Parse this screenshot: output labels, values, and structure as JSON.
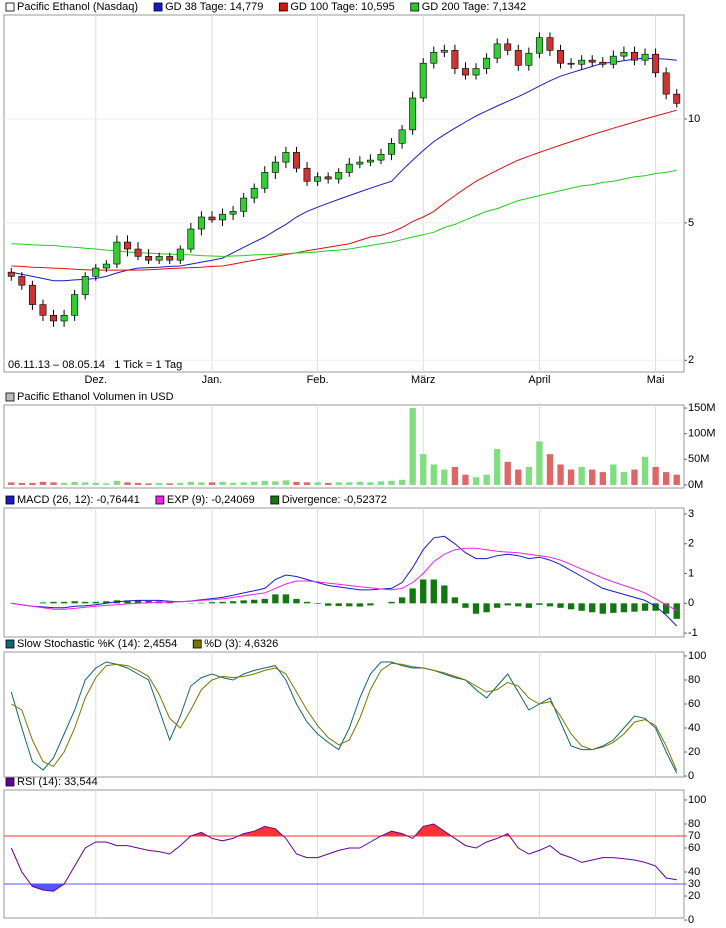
{
  "chart_data": [
    {
      "type": "candlestick",
      "title": "Pacific Ethanol (Nasdaq)",
      "color": "#ffffff",
      "subtitle": "06.11.13 – 08.05.14   1 Tick = 1 Tag",
      "categories": [
        null,
        null,
        null,
        null,
        null,
        null,
        null,
        null,
        "Dez.",
        null,
        null,
        null,
        null,
        null,
        null,
        null,
        null,
        null,
        null,
        "Jan.",
        null,
        null,
        null,
        null,
        null,
        null,
        null,
        null,
        null,
        "Feb.",
        null,
        null,
        null,
        null,
        null,
        null,
        null,
        null,
        null,
        "März",
        null,
        null,
        null,
        null,
        null,
        null,
        null,
        null,
        null,
        null,
        "April",
        null,
        null,
        null,
        null,
        null,
        null,
        null,
        null,
        null,
        null,
        "Mai",
        null,
        null
      ],
      "open": [
        3.6,
        3.5,
        3.3,
        2.9,
        2.7,
        2.6,
        2.7,
        3.1,
        3.5,
        3.7,
        3.8,
        4.4,
        4.2,
        4.0,
        3.9,
        4.0,
        3.9,
        4.2,
        4.8,
        5.2,
        5.1,
        5.3,
        5.4,
        5.9,
        6.3,
        7.0,
        7.5,
        8.0,
        7.2,
        6.6,
        6.8,
        6.7,
        7.0,
        7.4,
        7.5,
        7.6,
        7.9,
        8.5,
        9.3,
        11.5,
        14.5,
        15.6,
        15.8,
        14.0,
        13.4,
        14.0,
        15.0,
        16.5,
        15.8,
        14.3,
        15.5,
        17.2,
        15.8,
        14.5,
        14.4,
        14.8,
        14.6,
        14.4,
        15.2,
        15.6,
        14.8,
        15.4,
        13.6,
        11.8
      ],
      "high": [
        3.7,
        3.6,
        3.4,
        3.0,
        2.8,
        2.8,
        3.2,
        3.6,
        3.8,
        3.9,
        4.6,
        4.6,
        4.4,
        4.2,
        4.1,
        4.1,
        4.3,
        5.0,
        5.4,
        5.4,
        5.5,
        5.6,
        6.1,
        6.5,
        7.3,
        7.8,
        8.3,
        8.3,
        7.5,
        7.0,
        7.0,
        7.2,
        7.7,
        7.8,
        7.9,
        8.2,
        8.8,
        9.6,
        12.0,
        15.0,
        16.2,
        16.4,
        16.4,
        14.6,
        14.5,
        15.5,
        17.1,
        17.1,
        16.4,
        16.1,
        17.8,
        17.8,
        16.4,
        15.0,
        15.3,
        15.3,
        15.1,
        15.8,
        16.2,
        16.2,
        16.0,
        16.0,
        14.1,
        12.2
      ],
      "low": [
        3.4,
        3.2,
        2.8,
        2.6,
        2.5,
        2.5,
        2.6,
        3.0,
        3.4,
        3.6,
        3.7,
        4.0,
        3.9,
        3.8,
        3.8,
        3.8,
        3.8,
        4.1,
        4.6,
        5.0,
        4.9,
        5.1,
        5.2,
        5.7,
        6.1,
        6.7,
        7.2,
        7.0,
        6.4,
        6.4,
        6.5,
        6.5,
        6.8,
        7.2,
        7.3,
        7.4,
        7.6,
        8.2,
        9.0,
        11.2,
        14.0,
        15.1,
        13.5,
        13.0,
        13.0,
        13.5,
        14.5,
        15.3,
        13.8,
        13.8,
        15.0,
        15.2,
        14.0,
        14.0,
        13.9,
        14.2,
        14.1,
        14.0,
        14.8,
        14.3,
        14.3,
        13.2,
        11.4,
        10.8
      ],
      "close": [
        3.5,
        3.3,
        2.9,
        2.7,
        2.6,
        2.7,
        3.1,
        3.5,
        3.7,
        3.8,
        4.4,
        4.2,
        4.0,
        3.9,
        4.0,
        3.9,
        4.2,
        4.8,
        5.2,
        5.1,
        5.3,
        5.4,
        5.9,
        6.3,
        7.0,
        7.5,
        8.0,
        7.2,
        6.6,
        6.8,
        6.7,
        7.0,
        7.4,
        7.5,
        7.6,
        7.9,
        8.5,
        9.3,
        11.5,
        14.5,
        15.6,
        15.8,
        14.0,
        13.4,
        14.0,
        15.0,
        16.5,
        15.8,
        14.3,
        15.5,
        17.2,
        15.8,
        14.5,
        14.4,
        14.8,
        14.6,
        14.4,
        15.2,
        15.6,
        14.8,
        15.4,
        13.6,
        11.8,
        11.1
      ],
      "up_color": "#33cc33",
      "down_color": "#cc3333",
      "series": [
        {
          "name": "GD 38 Tage: 14,779",
          "color": "#1a1acc",
          "values": [
            3.6,
            3.55,
            3.5,
            3.45,
            3.4,
            3.4,
            3.42,
            3.43,
            3.45,
            3.5,
            3.58,
            3.65,
            3.7,
            3.71,
            3.72,
            3.74,
            3.75,
            3.8,
            3.85,
            3.9,
            3.95,
            4.1,
            4.25,
            4.4,
            4.55,
            4.75,
            4.95,
            5.2,
            5.4,
            5.55,
            5.7,
            5.85,
            6.0,
            6.15,
            6.3,
            6.45,
            6.6,
            7.1,
            7.6,
            8.1,
            8.6,
            9.0,
            9.4,
            9.8,
            10.2,
            10.55,
            10.9,
            11.25,
            11.6,
            12.0,
            12.45,
            12.9,
            13.3,
            13.6,
            13.9,
            14.2,
            14.5,
            14.6,
            14.75,
            14.9,
            15.0,
            14.95,
            14.9,
            14.8
          ]
        },
        {
          "name": "GD 100 Tage: 10,595",
          "color": "#dd1111",
          "values": [
            3.75,
            3.74,
            3.72,
            3.71,
            3.7,
            3.69,
            3.67,
            3.66,
            3.65,
            3.65,
            3.65,
            3.65,
            3.65,
            3.66,
            3.67,
            3.69,
            3.7,
            3.71,
            3.72,
            3.74,
            3.75,
            3.8,
            3.85,
            3.9,
            3.95,
            4.0,
            4.05,
            4.1,
            4.15,
            4.2,
            4.25,
            4.3,
            4.35,
            4.45,
            4.55,
            4.6,
            4.7,
            4.85,
            5.05,
            5.2,
            5.4,
            5.7,
            6.0,
            6.3,
            6.6,
            6.85,
            7.1,
            7.35,
            7.6,
            7.8,
            8.0,
            8.2,
            8.4,
            8.6,
            8.8,
            9.0,
            9.2,
            9.4,
            9.6,
            9.8,
            10.0,
            10.2,
            10.4,
            10.6
          ]
        },
        {
          "name": "GD 200 Tage: 7,1342",
          "color": "#22cc22",
          "values": [
            4.35,
            4.34,
            4.32,
            4.31,
            4.3,
            4.27,
            4.25,
            4.22,
            4.2,
            4.17,
            4.15,
            4.12,
            4.1,
            4.09,
            4.07,
            4.06,
            4.05,
            4.04,
            4.02,
            4.01,
            4.0,
            4.01,
            4.02,
            4.04,
            4.05,
            4.06,
            4.07,
            4.09,
            4.1,
            4.12,
            4.15,
            4.17,
            4.2,
            4.25,
            4.3,
            4.35,
            4.4,
            4.47,
            4.55,
            4.62,
            4.7,
            4.85,
            4.95,
            5.1,
            5.25,
            5.4,
            5.5,
            5.65,
            5.8,
            5.9,
            6.0,
            6.1,
            6.2,
            6.3,
            6.4,
            6.45,
            6.55,
            6.6,
            6.7,
            6.8,
            6.85,
            6.95,
            7.0,
            7.1
          ]
        }
      ],
      "ylim": [
        1.85,
        20
      ],
      "yticks": [
        2,
        5,
        10
      ],
      "log": true
    },
    {
      "type": "bar",
      "title": "Pacific Ethanol Volumen in USD",
      "color": "#bbbbbb",
      "up_color": "#80dd80",
      "down_color": "#dd6666",
      "values": [
        5000000,
        4000000,
        4000000,
        6000000,
        5000000,
        4000000,
        6000000,
        5000000,
        4000000,
        3000000,
        8000000,
        5000000,
        4000000,
        3000000,
        4000000,
        3000000,
        4000000,
        6000000,
        5000000,
        5000000,
        6000000,
        4000000,
        5000000,
        6000000,
        8000000,
        7000000,
        9000000,
        6000000,
        5000000,
        5000000,
        4000000,
        5000000,
        5000000,
        6000000,
        5000000,
        7000000,
        8000000,
        10000000,
        150000000,
        60000000,
        40000000,
        30000000,
        35000000,
        20000000,
        15000000,
        20000000,
        70000000,
        45000000,
        30000000,
        35000000,
        85000000,
        60000000,
        40000000,
        30000000,
        35000000,
        30000000,
        25000000,
        40000000,
        25000000,
        30000000,
        55000000,
        35000000,
        25000000,
        20000000
      ],
      "ylim": [
        -6000000,
        156000000
      ],
      "yticks": [
        {
          "value": 0,
          "label": "0M"
        },
        {
          "value": 50000000,
          "label": "50M"
        },
        {
          "value": 100000000,
          "label": "100M"
        },
        {
          "value": 150000000,
          "label": "150M"
        }
      ]
    },
    {
      "type": "macd",
      "series": [
        {
          "name": "MACD (26, 12): -0,76441",
          "color": "#1a1acc",
          "values": [
            0,
            -0.05,
            -0.1,
            -0.12,
            -0.15,
            -0.15,
            -0.1,
            -0.08,
            -0.05,
            0,
            0.05,
            0.08,
            0.1,
            0.1,
            0.1,
            0.07,
            0.05,
            0.08,
            0.12,
            0.16,
            0.2,
            0.27,
            0.35,
            0.42,
            0.5,
            0.8,
            0.95,
            0.9,
            0.8,
            0.7,
            0.6,
            0.55,
            0.5,
            0.45,
            0.45,
            0.48,
            0.5,
            0.7,
            1.2,
            1.8,
            2.2,
            2.25,
            2.0,
            1.7,
            1.5,
            1.5,
            1.6,
            1.65,
            1.6,
            1.5,
            1.55,
            1.45,
            1.3,
            1.1,
            0.9,
            0.7,
            0.5,
            0.4,
            0.3,
            0.2,
            0.1,
            -0.1,
            -0.4,
            -0.76
          ]
        },
        {
          "name": "EXP (9): -0,24069",
          "color": "#ee22ee",
          "values": [
            0,
            -0.05,
            -0.1,
            -0.15,
            -0.2,
            -0.2,
            -0.17,
            -0.13,
            -0.1,
            -0.07,
            -0.05,
            -0.02,
            0,
            0.02,
            0.03,
            0.04,
            0.05,
            0.07,
            0.1,
            0.12,
            0.15,
            0.2,
            0.25,
            0.3,
            0.35,
            0.5,
            0.65,
            0.75,
            0.75,
            0.72,
            0.68,
            0.64,
            0.6,
            0.56,
            0.52,
            0.48,
            0.45,
            0.5,
            0.7,
            1.0,
            1.4,
            1.65,
            1.8,
            1.85,
            1.85,
            1.8,
            1.75,
            1.72,
            1.7,
            1.65,
            1.6,
            1.55,
            1.45,
            1.3,
            1.15,
            1.0,
            0.85,
            0.72,
            0.6,
            0.48,
            0.35,
            0.15,
            -0.05,
            -0.24
          ]
        },
        {
          "name": "Divergence: -0,52372",
          "color": "#117711",
          "style": "bar",
          "values": [
            0,
            0,
            0,
            0.03,
            0.05,
            0.05,
            0.07,
            0.05,
            0.05,
            0.07,
            0.1,
            0.1,
            0.1,
            0.08,
            0.07,
            0.03,
            0,
            0.01,
            0.02,
            0.04,
            0.05,
            0.07,
            0.1,
            0.12,
            0.15,
            0.3,
            0.3,
            0.15,
            0.05,
            -0.02,
            -0.08,
            -0.09,
            -0.1,
            -0.11,
            -0.07,
            0,
            0.05,
            0.2,
            0.5,
            0.8,
            0.8,
            0.6,
            0.2,
            -0.15,
            -0.35,
            -0.3,
            -0.15,
            -0.07,
            -0.1,
            -0.15,
            -0.05,
            -0.1,
            -0.15,
            -0.2,
            -0.25,
            -0.3,
            -0.35,
            -0.32,
            -0.3,
            -0.28,
            -0.25,
            -0.25,
            -0.35,
            -0.52
          ]
        }
      ],
      "ylim": [
        -1.13,
        3.2
      ],
      "yticks": [
        -1,
        0,
        1,
        2,
        3
      ]
    },
    {
      "type": "line",
      "series": [
        {
          "name": "Slow Stochastic %K (14): 2,4554",
          "color": "#116677",
          "values": [
            70,
            40,
            12,
            5,
            15,
            35,
            55,
            80,
            90,
            95,
            93,
            90,
            85,
            80,
            55,
            30,
            50,
            75,
            82,
            85,
            82,
            80,
            85,
            88,
            90,
            92,
            80,
            60,
            45,
            35,
            28,
            22,
            40,
            65,
            85,
            95,
            95,
            92,
            90,
            90,
            88,
            85,
            82,
            80,
            72,
            65,
            75,
            85,
            70,
            55,
            60,
            65,
            45,
            25,
            22,
            22,
            25,
            30,
            40,
            50,
            48,
            40,
            20,
            2.4554
          ]
        },
        {
          "name": "%D (3): 4,6326",
          "color": "#777700",
          "values": [
            60,
            55,
            30,
            12,
            8,
            20,
            40,
            65,
            82,
            92,
            93,
            92,
            88,
            83,
            68,
            48,
            40,
            55,
            72,
            80,
            83,
            82,
            83,
            85,
            88,
            90,
            85,
            70,
            55,
            42,
            32,
            26,
            30,
            48,
            72,
            88,
            94,
            93,
            91,
            90,
            88,
            86,
            83,
            80,
            75,
            70,
            72,
            78,
            75,
            65,
            60,
            62,
            50,
            35,
            25,
            22,
            24,
            28,
            35,
            45,
            47,
            42,
            25,
            4.6326
          ]
        }
      ],
      "ylim": [
        -0.8,
        103.3
      ],
      "yticks": [
        0,
        20,
        40,
        60,
        80,
        100
      ]
    },
    {
      "type": "rsi",
      "series": [
        {
          "name": "RSI (14): 33,544",
          "color": "#660099",
          "values": [
            60,
            40,
            28,
            25,
            24,
            30,
            45,
            60,
            65,
            65,
            62,
            62,
            60,
            58,
            57,
            55,
            62,
            70,
            73,
            68,
            66,
            68,
            72,
            74,
            78,
            76,
            68,
            55,
            52,
            52,
            55,
            58,
            60,
            60,
            65,
            70,
            74,
            72,
            68,
            78,
            80,
            74,
            68,
            62,
            60,
            65,
            68,
            72,
            60,
            55,
            58,
            62,
            55,
            52,
            48,
            50,
            52,
            52,
            51,
            50,
            48,
            45,
            35,
            33.544
          ]
        }
      ],
      "overbought": 70,
      "oversold": 30,
      "overbought_color": "#ff3333",
      "oversold_color": "#5555ff",
      "ylim": [
        1.7,
        108.3
      ],
      "yticks": [
        0,
        20,
        30,
        40,
        60,
        70,
        80,
        100
      ]
    }
  ]
}
